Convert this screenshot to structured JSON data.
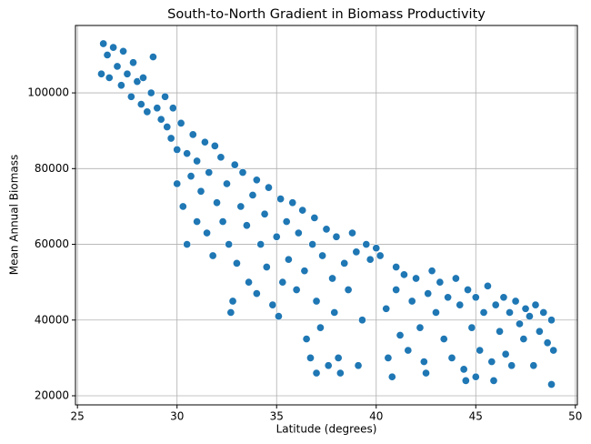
{
  "chart_data": {
    "type": "scatter",
    "title": "South-to-North Gradient in Biomass Productivity",
    "x_label": "Latitude (degrees)",
    "y_label": "Mean Annual Biomass",
    "color": "#1f77b4",
    "grid": true,
    "xlim": [
      24.9,
      50.1
    ],
    "ylim": [
      17600,
      117800
    ],
    "xticks": [
      25,
      30,
      35,
      40,
      45,
      50
    ],
    "yticks": [
      20000,
      40000,
      60000,
      80000,
      100000
    ],
    "x": [
      26.2,
      26.3,
      26.5,
      26.6,
      26.8,
      27.0,
      27.2,
      27.3,
      27.5,
      27.7,
      27.8,
      28.0,
      28.2,
      28.3,
      28.5,
      28.7,
      28.8,
      29.0,
      29.2,
      29.4,
      29.5,
      29.7,
      29.8,
      30.0,
      30.0,
      30.2,
      30.3,
      30.5,
      30.5,
      30.7,
      30.8,
      31.0,
      31.0,
      31.2,
      31.4,
      31.5,
      31.6,
      31.8,
      31.9,
      32.0,
      32.2,
      32.3,
      32.5,
      32.6,
      32.7,
      32.8,
      32.9,
      33.0,
      33.2,
      33.3,
      33.5,
      33.6,
      33.8,
      34.0,
      34.0,
      34.2,
      34.4,
      34.5,
      34.6,
      34.8,
      35.0,
      35.1,
      35.2,
      35.3,
      35.5,
      35.6,
      35.8,
      36.0,
      36.1,
      36.3,
      36.4,
      36.5,
      36.7,
      36.8,
      36.9,
      37.0,
      37.0,
      37.2,
      37.3,
      37.5,
      37.6,
      37.8,
      37.9,
      38.0,
      38.1,
      38.2,
      38.4,
      38.6,
      38.8,
      39.0,
      39.1,
      39.3,
      39.5,
      39.7,
      40.0,
      40.2,
      40.5,
      40.6,
      40.8,
      41.0,
      41.0,
      41.2,
      41.4,
      41.6,
      41.8,
      42.0,
      42.2,
      42.4,
      42.5,
      42.6,
      42.8,
      43.0,
      43.2,
      43.4,
      43.6,
      43.8,
      44.0,
      44.2,
      44.4,
      44.5,
      44.6,
      44.8,
      45.0,
      45.0,
      45.2,
      45.4,
      45.6,
      45.8,
      45.9,
      46.0,
      46.2,
      46.4,
      46.5,
      46.7,
      46.8,
      47.0,
      47.2,
      47.4,
      47.5,
      47.7,
      47.9,
      48.0,
      48.2,
      48.4,
      48.6,
      48.8,
      48.8,
      48.9
    ],
    "y": [
      105000,
      113000,
      110000,
      104000,
      112000,
      107000,
      102000,
      111000,
      105000,
      99000,
      108000,
      103000,
      97000,
      104000,
      95000,
      100000,
      109500,
      96000,
      93000,
      99000,
      91000,
      88000,
      96000,
      85000,
      76000,
      92000,
      70000,
      60000,
      84000,
      78000,
      89000,
      66000,
      82000,
      74000,
      87000,
      63000,
      79000,
      57000,
      86000,
      71000,
      83000,
      66000,
      76000,
      60000,
      42000,
      45000,
      81000,
      55000,
      70000,
      79000,
      65000,
      50000,
      73000,
      77000,
      47000,
      60000,
      68000,
      54000,
      75000,
      44000,
      62000,
      41000,
      72000,
      50000,
      66000,
      56000,
      71000,
      48000,
      63000,
      69000,
      53000,
      35000,
      30000,
      60000,
      67000,
      26000,
      45000,
      38000,
      57000,
      64000,
      28000,
      51000,
      42000,
      62000,
      30000,
      26000,
      55000,
      48000,
      63000,
      58000,
      28000,
      40000,
      60000,
      56000,
      59000,
      57000,
      43000,
      30000,
      25000,
      54000,
      48000,
      36000,
      52000,
      32000,
      45000,
      51000,
      38000,
      29000,
      26000,
      47000,
      53000,
      42000,
      50000,
      35000,
      46000,
      30000,
      51000,
      44000,
      27000,
      24000,
      48000,
      38000,
      25000,
      46000,
      32000,
      42000,
      49000,
      29000,
      24000,
      44000,
      37000,
      46000,
      31000,
      42000,
      28000,
      45000,
      39000,
      35000,
      43000,
      41000,
      28000,
      44000,
      37000,
      42000,
      34000,
      40000,
      23000,
      32000
    ]
  }
}
